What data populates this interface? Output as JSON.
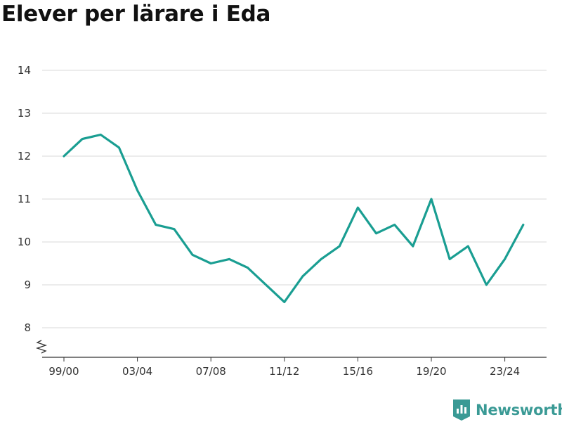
{
  "title": "Elever per lärare i Eda",
  "brand": {
    "name": "Newsworthy",
    "icon": "bar-chart-logo-icon",
    "color": "#3a9a95"
  },
  "chart_data": {
    "type": "line",
    "title": "Elever per lärare i Eda",
    "xlabel": "",
    "ylabel": "",
    "y_ticks": [
      8,
      9,
      10,
      11,
      12,
      13,
      14
    ],
    "ylim": [
      7.35,
      14
    ],
    "y_axis_break": true,
    "x_ticks": [
      "99/00",
      "03/04",
      "07/08",
      "11/12",
      "15/16",
      "19/20",
      "23/24"
    ],
    "grid": true,
    "legend": "none",
    "line_color": "#1a9e92",
    "series": [
      {
        "x": [
          "99/00",
          "00/01",
          "01/02",
          "02/03",
          "03/04",
          "04/05",
          "05/06",
          "06/07",
          "07/08",
          "08/09",
          "09/10",
          "10/11",
          "11/12",
          "12/13",
          "13/14",
          "14/15",
          "15/16",
          "16/17",
          "17/18",
          "18/19",
          "19/20",
          "20/21",
          "21/22",
          "22/23",
          "23/24",
          "24/25"
        ],
        "values": [
          12.0,
          12.4,
          12.5,
          12.2,
          11.2,
          10.4,
          10.3,
          9.7,
          9.5,
          9.6,
          9.4,
          9.0,
          8.6,
          9.2,
          9.6,
          9.9,
          10.8,
          10.2,
          10.4,
          9.9,
          11.0,
          9.6,
          9.9,
          9.0,
          9.6,
          10.4
        ]
      }
    ]
  }
}
